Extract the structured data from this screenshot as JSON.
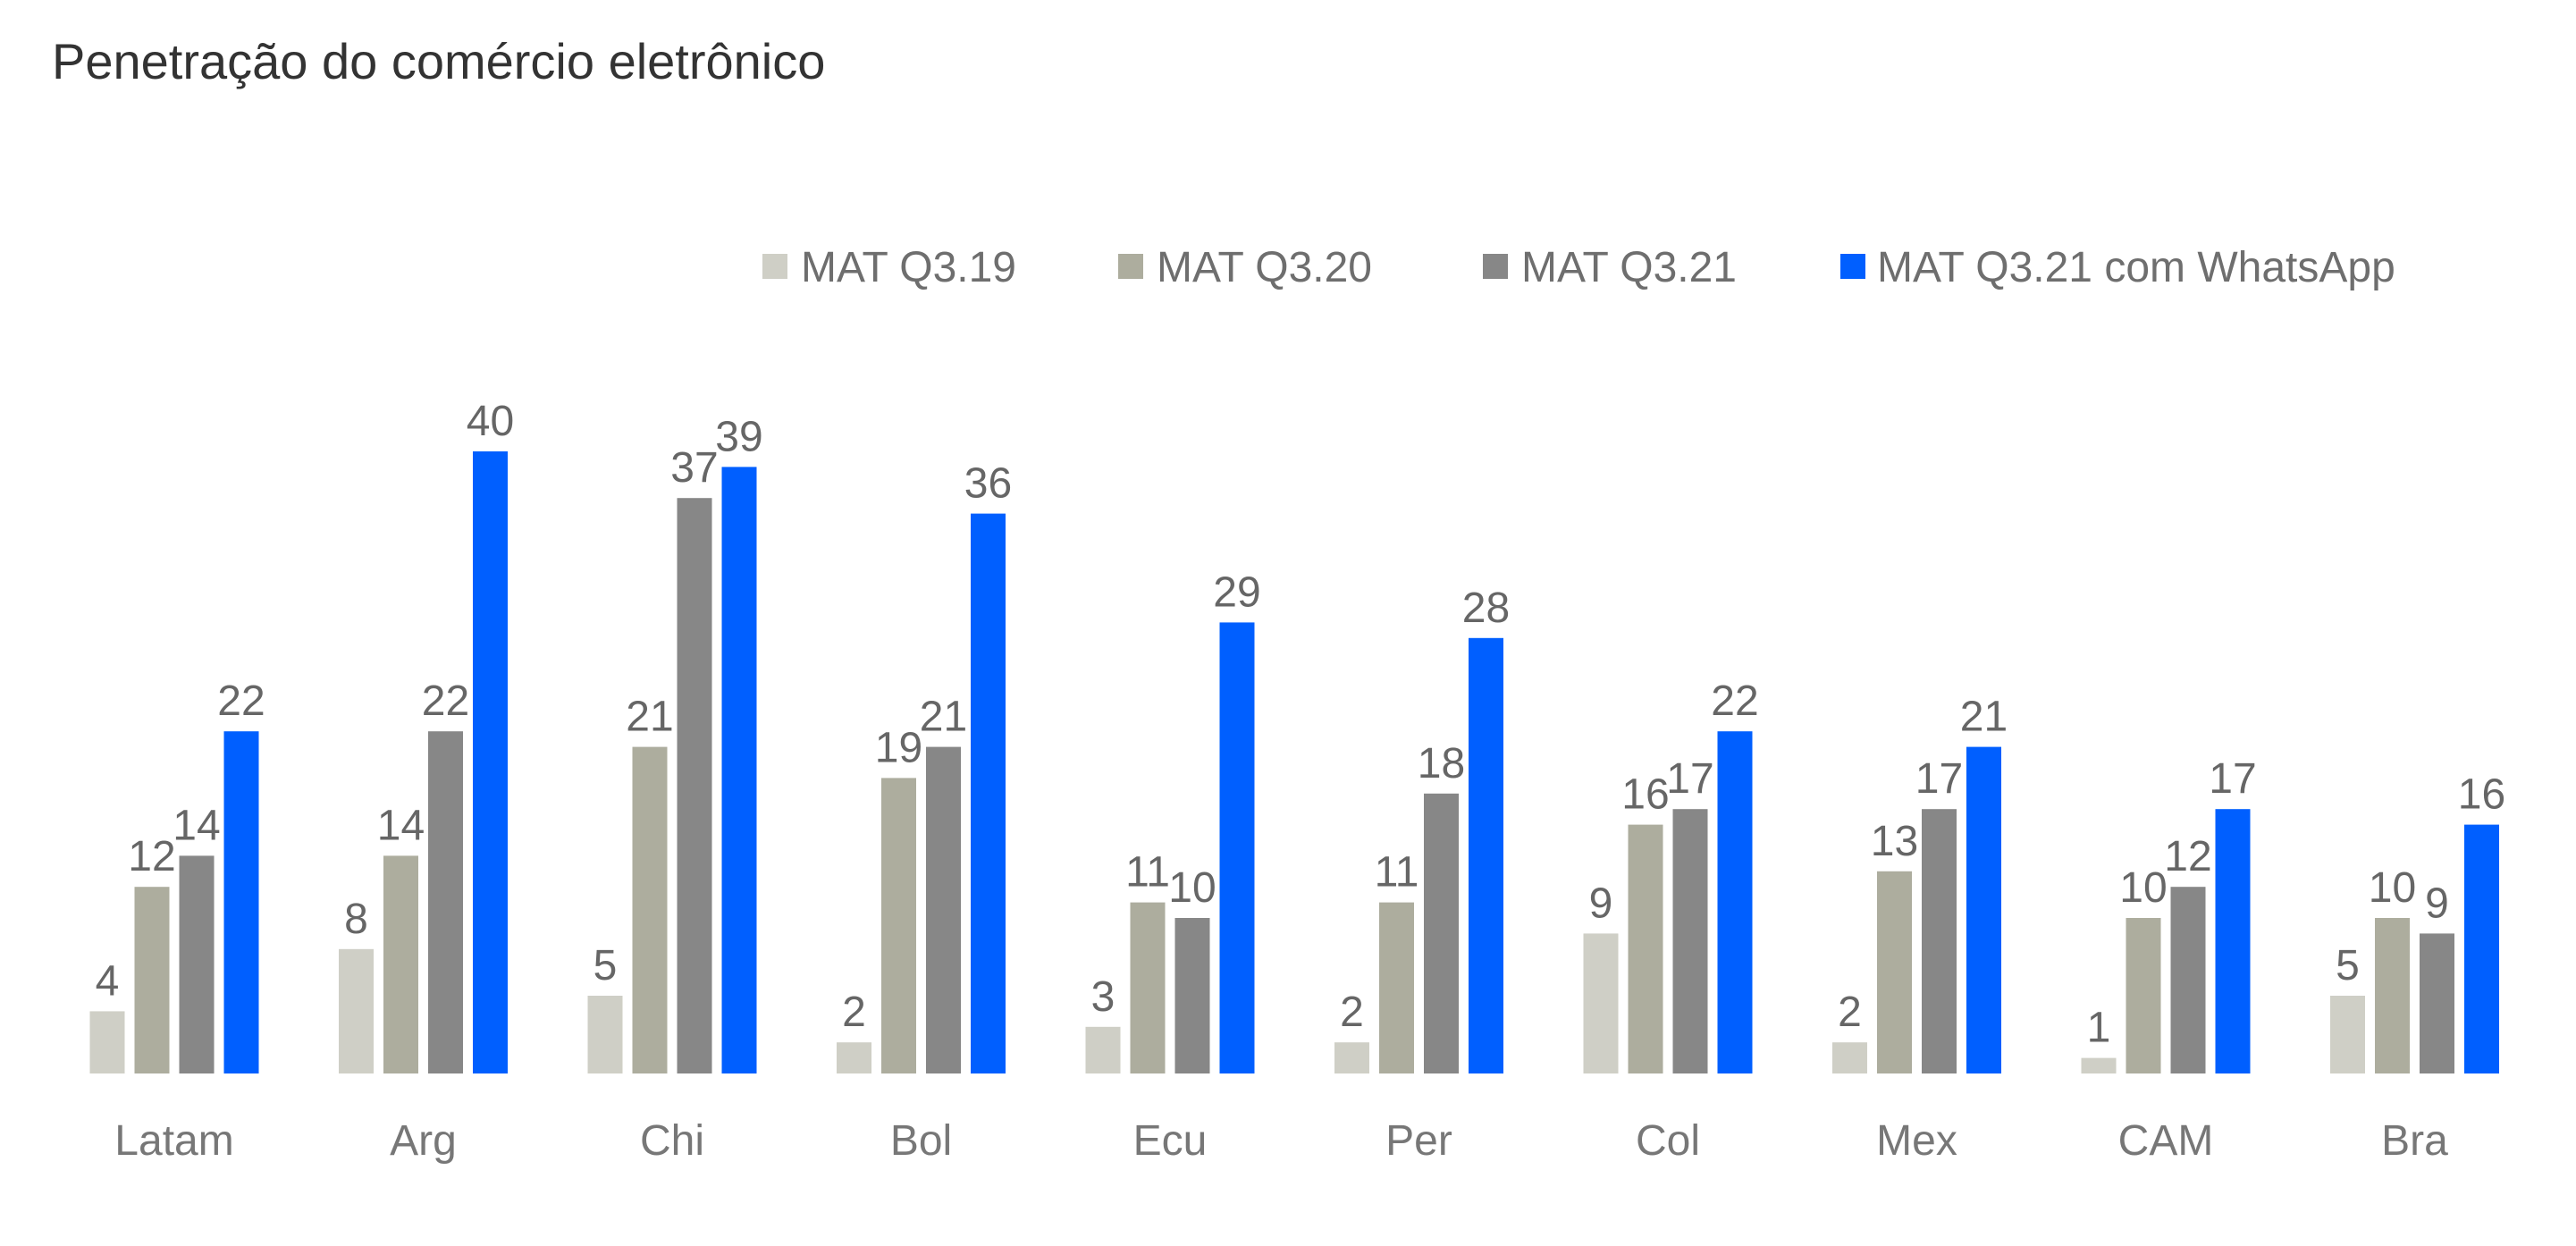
{
  "chart_data": {
    "type": "bar",
    "title": "Penetração do comércio eletrônico",
    "xlabel": "",
    "ylabel": "",
    "ylim": [
      0,
      40
    ],
    "grid": false,
    "legend_position": "top-right",
    "categories": [
      "Latam",
      "Arg",
      "Chi",
      "Bol",
      "Ecu",
      "Per",
      "Col",
      "Mex",
      "CAM",
      "Bra"
    ],
    "series": [
      {
        "name": "MAT Q3.19",
        "color": "#cfcfc6",
        "values": [
          4,
          8,
          5,
          2,
          3,
          2,
          9,
          2,
          1,
          5
        ]
      },
      {
        "name": "MAT Q3.20",
        "color": "#adad9e",
        "values": [
          12,
          14,
          21,
          19,
          11,
          11,
          16,
          13,
          10,
          10
        ]
      },
      {
        "name": "MAT Q3.21",
        "color": "#878787",
        "values": [
          14,
          22,
          37,
          21,
          10,
          18,
          17,
          17,
          12,
          9
        ]
      },
      {
        "name": "MAT Q3.21 com WhatsApp",
        "color": "#005fff",
        "values": [
          22,
          40,
          39,
          36,
          29,
          28,
          22,
          21,
          17,
          16
        ]
      }
    ]
  }
}
